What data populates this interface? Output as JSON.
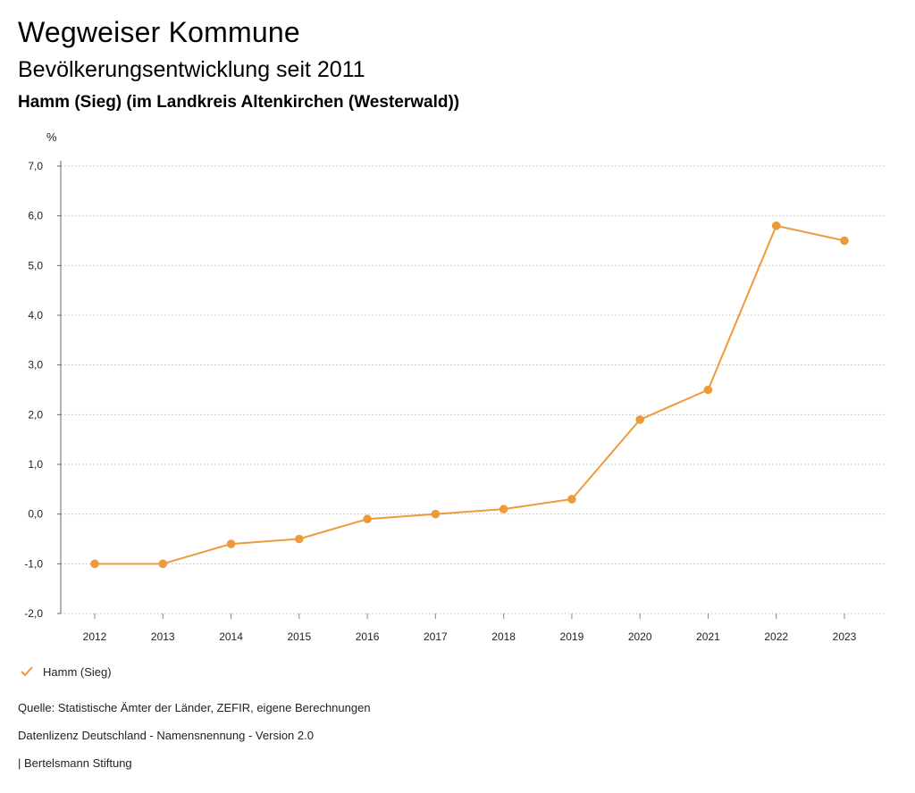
{
  "header": {
    "title": "Wegweiser Kommune",
    "subtitle": "Bevölkerungsentwicklung seit 2011",
    "place": "Hamm (Sieg) (im Landkreis Altenkirchen (Westerwald))"
  },
  "legend": {
    "entry": "Hamm (Sieg)"
  },
  "footer": {
    "source": "Quelle: Statistische Ämter der Länder, ZEFIR, eigene Berechnungen",
    "license": "Datenlizenz Deutschland - Namensnennung - Version 2.0",
    "credit": "| Bertelsmann Stiftung"
  },
  "colors": {
    "series": "#ee9a3a",
    "grid": "#bdbdbd"
  },
  "chart_data": {
    "type": "line",
    "ylabel": "%",
    "ylim": [
      -2,
      7
    ],
    "yticks": [
      "7,0",
      "6,0",
      "5,0",
      "4,0",
      "3,0",
      "2,0",
      "1,0",
      "0,0",
      "-1,0",
      "-2,0"
    ],
    "x": [
      "2012",
      "2013",
      "2014",
      "2015",
      "2016",
      "2017",
      "2018",
      "2019",
      "2020",
      "2021",
      "2022",
      "2023"
    ],
    "series": [
      {
        "name": "Hamm (Sieg)",
        "values": [
          -1.0,
          -1.0,
          -0.6,
          -0.5,
          -0.1,
          0.0,
          0.1,
          0.3,
          1.9,
          2.5,
          5.8,
          5.5
        ]
      }
    ],
    "grid": true,
    "legend_position": "bottom-left"
  }
}
